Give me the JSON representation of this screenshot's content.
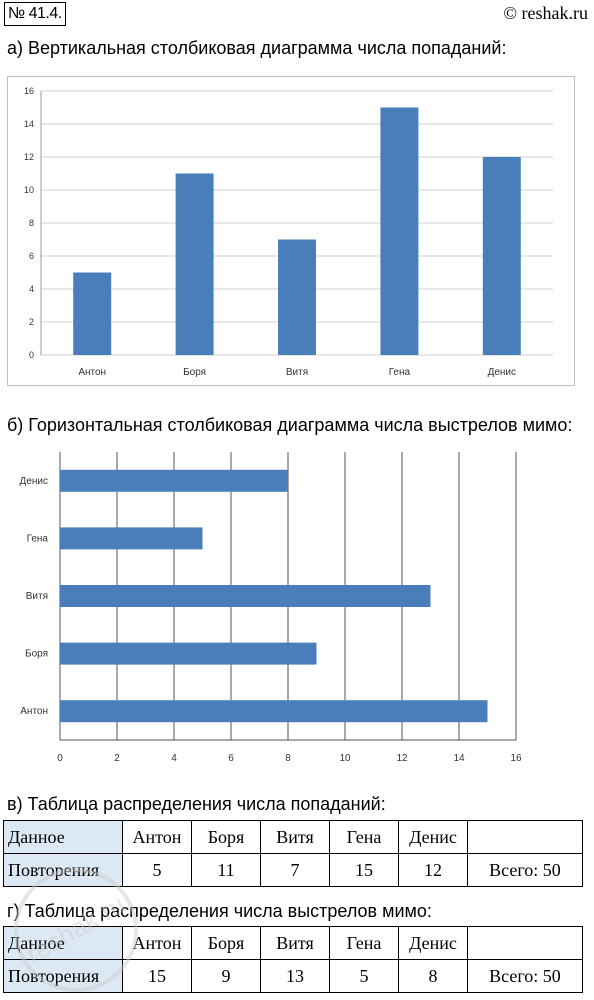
{
  "problem_number": "№ 41.4.",
  "site": "© reshak.ru",
  "watermark_text": "reshak.ru",
  "heading_a": "а) Вертикальная столбиковая диаграмма числа попаданий:",
  "heading_b": "б) Горизонтальная столбиковая диаграмма числа выстрелов мимо:",
  "heading_v": "в) Таблица распределения числа попаданий:",
  "heading_g": "г) Таблица распределения числа выстрелов мимо:",
  "chart_data": [
    {
      "type": "bar",
      "orientation": "vertical",
      "categories": [
        "Антон",
        "Боря",
        "Витя",
        "Гена",
        "Денис"
      ],
      "values": [
        5,
        11,
        7,
        15,
        12
      ],
      "ylim": [
        0,
        16
      ],
      "ticks": [
        0,
        2,
        4,
        6,
        8,
        10,
        12,
        14,
        16
      ],
      "grid": true,
      "color": "#4a7ebb"
    },
    {
      "type": "bar",
      "orientation": "horizontal",
      "categories": [
        "Денис",
        "Гена",
        "Витя",
        "Боря",
        "Антон"
      ],
      "values": [
        8,
        5,
        13,
        9,
        15
      ],
      "xlim": [
        0,
        16
      ],
      "ticks": [
        0,
        2,
        4,
        6,
        8,
        10,
        12,
        14,
        16
      ],
      "grid": true,
      "color": "#4a7ebb"
    }
  ],
  "table_v": {
    "row_header_1": "Данное",
    "row_header_2": "Повторения",
    "names": [
      "Антон",
      "Боря",
      "Витя",
      "Гена",
      "Денис"
    ],
    "counts": [
      "5",
      "11",
      "7",
      "15",
      "12"
    ],
    "total": "Всего: 50"
  },
  "table_g": {
    "row_header_1": "Данное",
    "row_header_2": "Повторения",
    "names": [
      "Антон",
      "Боря",
      "Витя",
      "Гена",
      "Денис"
    ],
    "counts": [
      "15",
      "9",
      "13",
      "5",
      "8"
    ],
    "total": "Всего: 50"
  }
}
